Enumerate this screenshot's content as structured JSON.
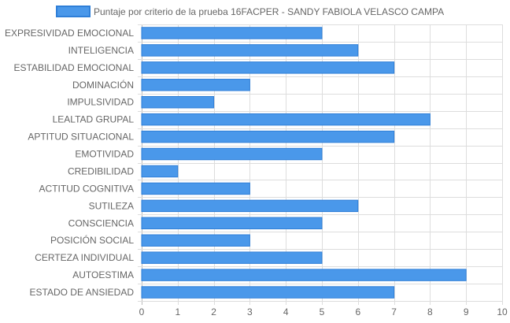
{
  "chart_data": {
    "type": "bar",
    "orientation": "horizontal",
    "legend": {
      "position": "top",
      "label": "Puntaje por criterio de la prueba 16FACPER - SANDY FABIOLA VELASCO CAMPA"
    },
    "categories": [
      "EXPRESIVIDAD EMOCIONAL",
      "INTELIGENCIA",
      "ESTABILIDAD EMOCIONAL",
      "DOMINACIÓN",
      "IMPULSIVIDAD",
      "LEALTAD GRUPAL",
      "APTITUD SITUACIONAL",
      "EMOTIVIDAD",
      "CREDIBILIDAD",
      "ACTITUD COGNITIVA",
      "SUTILEZA",
      "CONSCIENCIA",
      "POSICIÓN SOCIAL",
      "CERTEZA INDIVIDUAL",
      "AUTOESTIMA",
      "ESTADO DE ANSIEDAD"
    ],
    "series": [
      {
        "name": "Puntaje por criterio de la prueba 16FACPER - SANDY FABIOLA VELASCO CAMPA",
        "values": [
          5,
          6,
          7,
          3,
          2,
          8,
          7,
          5,
          1,
          3,
          6,
          5,
          3,
          5,
          9,
          7
        ]
      }
    ],
    "xlim": [
      0,
      10
    ],
    "xticks": [
      0,
      1,
      2,
      3,
      4,
      5,
      6,
      7,
      8,
      9,
      10
    ],
    "grid": true,
    "colors": {
      "bar_fill": "#4a98ea",
      "bar_stroke": "#2f7fd8",
      "grid": "#dddddd",
      "text": "#666666"
    }
  }
}
